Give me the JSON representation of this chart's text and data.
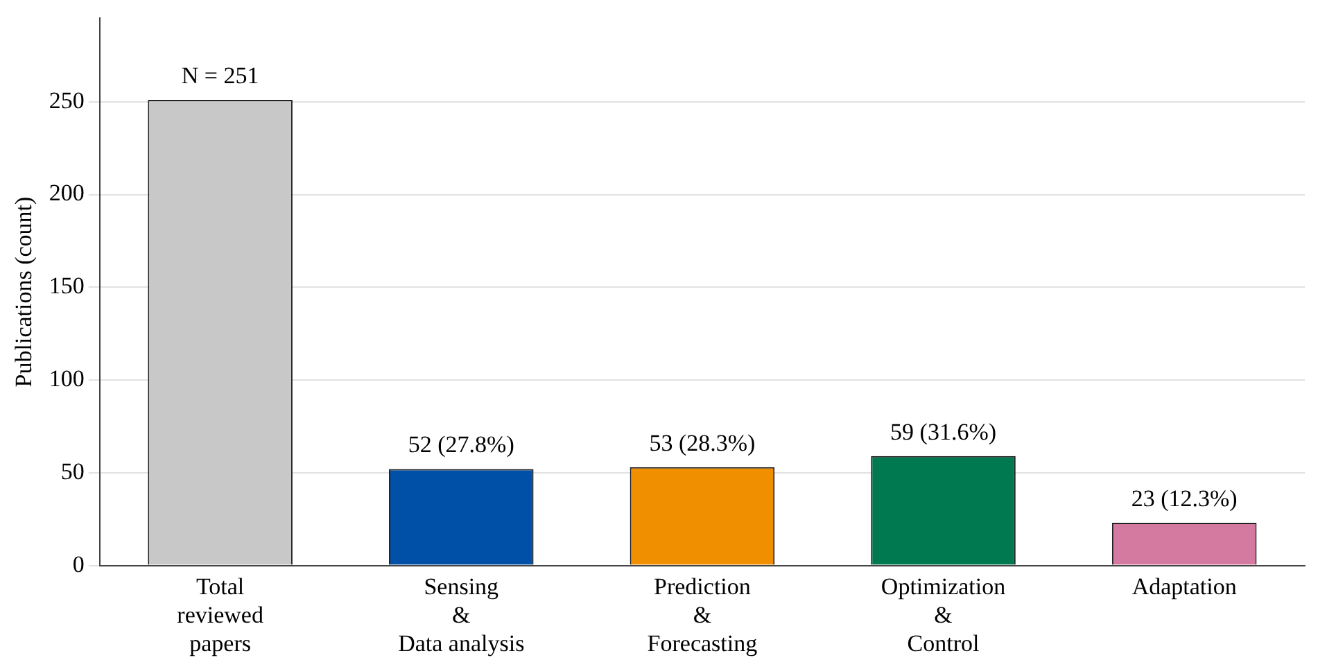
{
  "chart_data": {
    "type": "bar",
    "ylabel": "Publications (count)",
    "categories": [
      "Total\nreviewed\npapers",
      "Sensing\n&\nData analysis",
      "Prediction\n&\nForecasting",
      "Optimization\n&\nControl",
      "Adaptation"
    ],
    "values": [
      251,
      52,
      53,
      59,
      23
    ],
    "colors": [
      "#c8c8c8",
      "#0050a8",
      "#f09000",
      "#007850",
      "#d47aa0"
    ],
    "value_labels": [
      "N = 251",
      "52 (27.8%)",
      "53 (28.3%)",
      "59 (31.6%)",
      "23 (12.3%)"
    ],
    "ylim": [
      0,
      295
    ],
    "yticks": [
      0,
      50,
      100,
      150,
      200,
      250
    ],
    "grid": "y",
    "legend": false
  }
}
